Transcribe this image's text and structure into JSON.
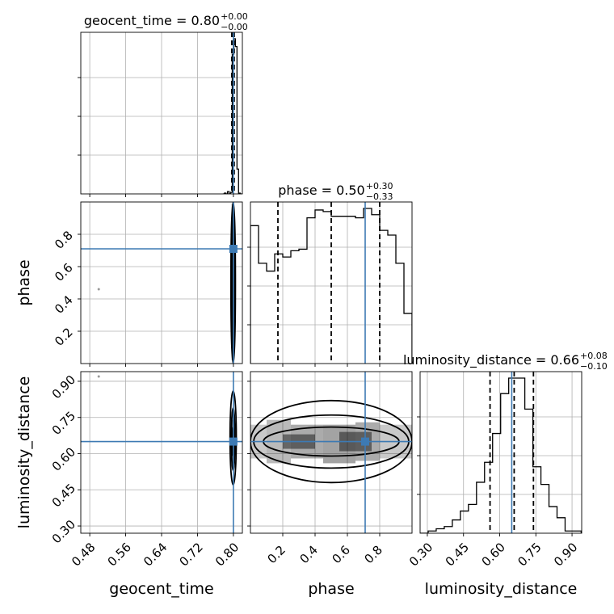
{
  "chart_data": {
    "type": "corner",
    "parameters": [
      "geocent_time",
      "phase",
      "luminosity_distance"
    ],
    "grid": true,
    "colors": {
      "truth": "#3d7ab3",
      "hist": "#000000",
      "quantile": "#000000",
      "density": "#555555"
    },
    "truths": {
      "geocent_time": 0.8,
      "phase": 0.71,
      "luminosity_distance": 0.65
    },
    "titles": [
      {
        "param": "geocent_time",
        "text": "geocent_time = 0.80",
        "sup": "+0.00",
        "sub": "−0.00"
      },
      {
        "param": "phase",
        "text": "phase = 0.50",
        "sup": "+0.30",
        "sub": "−0.33"
      },
      {
        "param": "luminosity_distance",
        "text": "luminosity_distance = 0.66",
        "sup": "+0.08",
        "sub": "−0.10"
      }
    ],
    "axes": {
      "geocent_time": {
        "label": "geocent_time",
        "range": [
          0.46,
          0.82
        ],
        "ticks": [
          0.48,
          0.56,
          0.64,
          0.72,
          0.8
        ],
        "tick_labels": [
          "0.48",
          "0.56",
          "0.64",
          "0.72",
          "0.80"
        ]
      },
      "phase": {
        "label": "phase",
        "range": [
          0.0,
          1.0
        ],
        "ticks": [
          0.2,
          0.4,
          0.6,
          0.8
        ],
        "tick_labels": [
          "0.2",
          "0.4",
          "0.6",
          "0.8"
        ]
      },
      "luminosity_distance": {
        "label": "luminosity_distance",
        "range": [
          0.27,
          0.94
        ],
        "ticks": [
          0.3,
          0.45,
          0.6,
          0.75,
          0.9
        ],
        "tick_labels": [
          "0.30",
          "0.45",
          "0.60",
          "0.75",
          "0.90"
        ]
      }
    },
    "marginals": {
      "geocent_time": {
        "bin_edges": [
          0.7765,
          0.78,
          0.7835,
          0.787,
          0.7905,
          0.794,
          0.7975,
          0.801,
          0.8045,
          0.808,
          0.8115,
          0.815,
          0.8185,
          0.822
        ],
        "counts": [
          0,
          1,
          0,
          3,
          0,
          2,
          180,
          200,
          190,
          32,
          1,
          0,
          0
        ],
        "quantiles": [
          0.7965,
          0.7995,
          0.8018
        ]
      },
      "phase": {
        "bin_edges": [
          0.0,
          0.05,
          0.1,
          0.15,
          0.2,
          0.25,
          0.3,
          0.35,
          0.4,
          0.45,
          0.5,
          0.55,
          0.6,
          0.65,
          0.7,
          0.75,
          0.8,
          0.85,
          0.9,
          0.95,
          1.0
        ],
        "counts": [
          88,
          64,
          59,
          70,
          68,
          72,
          73,
          93,
          98,
          97,
          94,
          94,
          94,
          93,
          99,
          95,
          85,
          82,
          64,
          32
        ],
        "quantiles": [
          0.17,
          0.5,
          0.8
        ]
      },
      "luminosity_distance": {
        "bin_edges": [
          0.27,
          0.3034,
          0.3368,
          0.3702,
          0.4036,
          0.437,
          0.4704,
          0.5038,
          0.5372,
          0.5706,
          0.604,
          0.6374,
          0.6708,
          0.7042,
          0.7376,
          0.771,
          0.8044,
          0.8378,
          0.8712,
          0.9046,
          0.938
        ],
        "counts": [
          0,
          1,
          2,
          3,
          6,
          10,
          13,
          23,
          32,
          45,
          63,
          70,
          70,
          56,
          30,
          22,
          12,
          7,
          1,
          1
        ],
        "quantiles": [
          0.56,
          0.66,
          0.74
        ]
      }
    },
    "contours": {
      "geocent_time|phase": {
        "density_cells": [
          {
            "x": [
              0.796,
              0.802
            ],
            "y": [
              0.02,
              0.99
            ],
            "shade": 0.55
          },
          {
            "x": [
              0.7975,
              0.8015
            ],
            "y": [
              0.12,
              0.9
            ],
            "shade": 0.85
          }
        ],
        "levels": [
          {
            "x": [
              0.7945,
              0.8045
            ],
            "y": [
              0.0,
              1.0
            ]
          },
          {
            "x": [
              0.7965,
              0.8025
            ],
            "y": [
              0.04,
              0.97
            ]
          },
          {
            "x": [
              0.798,
              0.8012
            ],
            "y": [
              0.14,
              0.88
            ]
          }
        ],
        "scatter_points": [
          [
            0.5,
            0.46
          ]
        ]
      },
      "geocent_time|luminosity_distance": {
        "density_cells": [
          {
            "x": [
              0.796,
              0.803
            ],
            "y": [
              0.56,
              0.74
            ],
            "shade": 0.75
          }
        ],
        "levels": [
          {
            "x": [
              0.7925,
              0.8065
            ],
            "y": [
              0.47,
              0.86
            ]
          },
          {
            "x": [
              0.7955,
              0.8035
            ],
            "y": [
              0.53,
              0.79
            ]
          },
          {
            "x": [
              0.7975,
              0.8015
            ],
            "y": [
              0.59,
              0.71
            ]
          }
        ],
        "scatter_points": [
          [
            0.5,
            0.92
          ]
        ]
      },
      "phase|luminosity_distance": {
        "density_cells": [
          {
            "x": [
              0.0,
              0.1
            ],
            "y": [
              0.58,
              0.72
            ],
            "shade": 0.35
          },
          {
            "x": [
              0.1,
              0.25
            ],
            "y": [
              0.56,
              0.74
            ],
            "shade": 0.45
          },
          {
            "x": [
              0.25,
              0.45
            ],
            "y": [
              0.58,
              0.72
            ],
            "shade": 0.55
          },
          {
            "x": [
              0.45,
              0.65
            ],
            "y": [
              0.56,
              0.72
            ],
            "shade": 0.6
          },
          {
            "x": [
              0.65,
              0.8
            ],
            "y": [
              0.57,
              0.73
            ],
            "shade": 0.55
          },
          {
            "x": [
              0.8,
              1.0
            ],
            "y": [
              0.58,
              0.72
            ],
            "shade": 0.35
          },
          {
            "x": [
              0.2,
              0.4
            ],
            "y": [
              0.62,
              0.68
            ],
            "shade": 0.75
          },
          {
            "x": [
              0.55,
              0.75
            ],
            "y": [
              0.61,
              0.69
            ],
            "shade": 0.75
          }
        ],
        "levels": [
          {
            "x": [
              0.0,
              1.0
            ],
            "y": [
              0.48,
              0.82
            ]
          },
          {
            "x": [
              0.02,
              0.98
            ],
            "y": [
              0.54,
              0.76
            ]
          },
          {
            "x": [
              0.08,
              0.92
            ],
            "y": [
              0.59,
              0.71
            ]
          }
        ],
        "scatter_points": []
      }
    }
  }
}
